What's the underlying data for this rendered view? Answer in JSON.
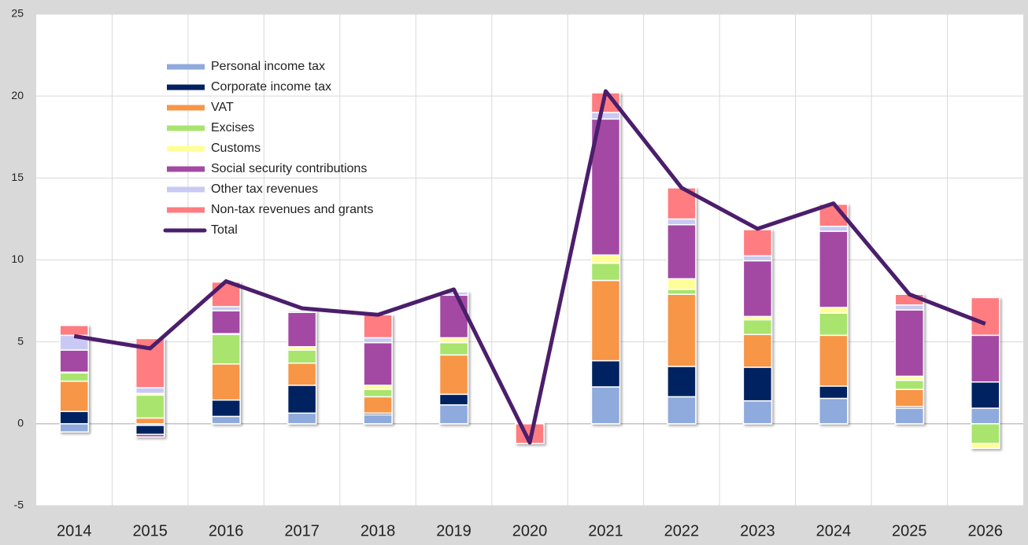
{
  "chart_data": {
    "type": "stacked_bar_line",
    "categories": [
      "2014",
      "2015",
      "2016",
      "2017",
      "2018",
      "2019",
      "2020",
      "2021",
      "2022",
      "2023",
      "2024",
      "2025",
      "2026"
    ],
    "ylim": [
      -5,
      25
    ],
    "yticks": [
      -5,
      0,
      5,
      10,
      15,
      20,
      25
    ],
    "grid": true,
    "legend": "upper-left",
    "series": [
      {
        "name": "Personal income tax",
        "color": "#8faadc",
        "values": [
          -0.5,
          -0.1,
          0.45,
          0.65,
          0.55,
          1.15,
          0,
          2.25,
          1.65,
          1.4,
          1.55,
          0.95,
          0.95
        ]
      },
      {
        "name": "Corporate income tax",
        "color": "#002060",
        "values": [
          0.75,
          -0.55,
          1.0,
          1.7,
          0.1,
          0.65,
          0,
          1.6,
          1.85,
          2.05,
          0.75,
          0.1,
          1.6
        ]
      },
      {
        "name": "VAT",
        "color": "#f79646",
        "values": [
          1.85,
          0.35,
          2.2,
          1.35,
          1.0,
          2.4,
          0,
          4.9,
          4.4,
          2.0,
          3.1,
          1.05,
          0
        ]
      },
      {
        "name": "Excises",
        "color": "#a9e46e",
        "values": [
          0.5,
          1.4,
          1.8,
          0.8,
          0.45,
          0.75,
          0,
          1.05,
          0.3,
          0.9,
          1.35,
          0.55,
          -1.2
        ]
      },
      {
        "name": "Customs",
        "color": "#ffff99",
        "values": [
          0.05,
          0.1,
          0.05,
          0.2,
          0.25,
          0.3,
          0,
          0.5,
          0.65,
          0.2,
          0.35,
          0.25,
          -0.3
        ]
      },
      {
        "name": "Social security contributions",
        "color": "#a349a4",
        "values": [
          1.35,
          -0.15,
          1.4,
          2.1,
          2.6,
          2.6,
          0,
          8.3,
          3.3,
          3.4,
          4.65,
          4.05,
          2.85
        ]
      },
      {
        "name": "Other tax revenues",
        "color": "#c9c9f5",
        "values": [
          0.9,
          0.35,
          0.25,
          0.1,
          0.3,
          0.2,
          0.05,
          0.4,
          0.35,
          0.3,
          0.3,
          0.3,
          0
        ]
      },
      {
        "name": "Non-tax revenues and grants",
        "color": "#ff7c80",
        "values": [
          0.6,
          3.0,
          1.5,
          0,
          1.4,
          0,
          -1.2,
          1.2,
          1.9,
          1.6,
          1.35,
          0.65,
          2.3
        ]
      },
      {
        "name": "Total",
        "color": "#4b1e6b",
        "type": "line",
        "values": [
          5.35,
          4.6,
          8.7,
          7.05,
          6.65,
          8.2,
          -1.15,
          20.3,
          14.4,
          11.9,
          13.45,
          7.9,
          6.1
        ]
      }
    ]
  }
}
